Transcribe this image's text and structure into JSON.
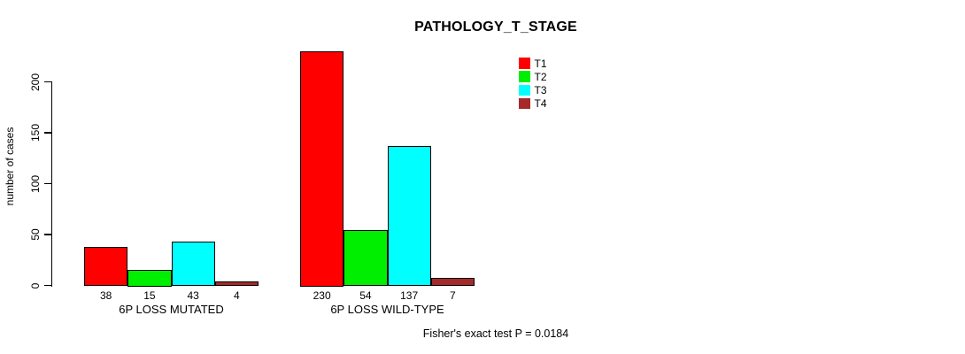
{
  "background": "#ffffff",
  "chart_data": {
    "type": "bar",
    "title": "PATHOLOGY_T_STAGE",
    "xlabel": "",
    "ylabel": "number of cases",
    "ylim": [
      0,
      230
    ],
    "yticks": [
      0,
      50,
      100,
      150,
      200
    ],
    "grid": false,
    "legend_position": "top-right",
    "show_value_labels": true,
    "groups": [
      "6P LOSS MUTATED",
      "6P LOSS WILD-TYPE"
    ],
    "series": [
      {
        "name": "T1",
        "color": "#ff0000",
        "values": [
          38,
          230
        ]
      },
      {
        "name": "T2",
        "color": "#00ee00",
        "values": [
          15,
          54
        ]
      },
      {
        "name": "T3",
        "color": "#00ffff",
        "values": [
          43,
          137
        ]
      },
      {
        "name": "T4",
        "color": "#a52a2a",
        "values": [
          4,
          7
        ]
      }
    ],
    "annotation": "Fisher's exact test P = 0.0184"
  }
}
